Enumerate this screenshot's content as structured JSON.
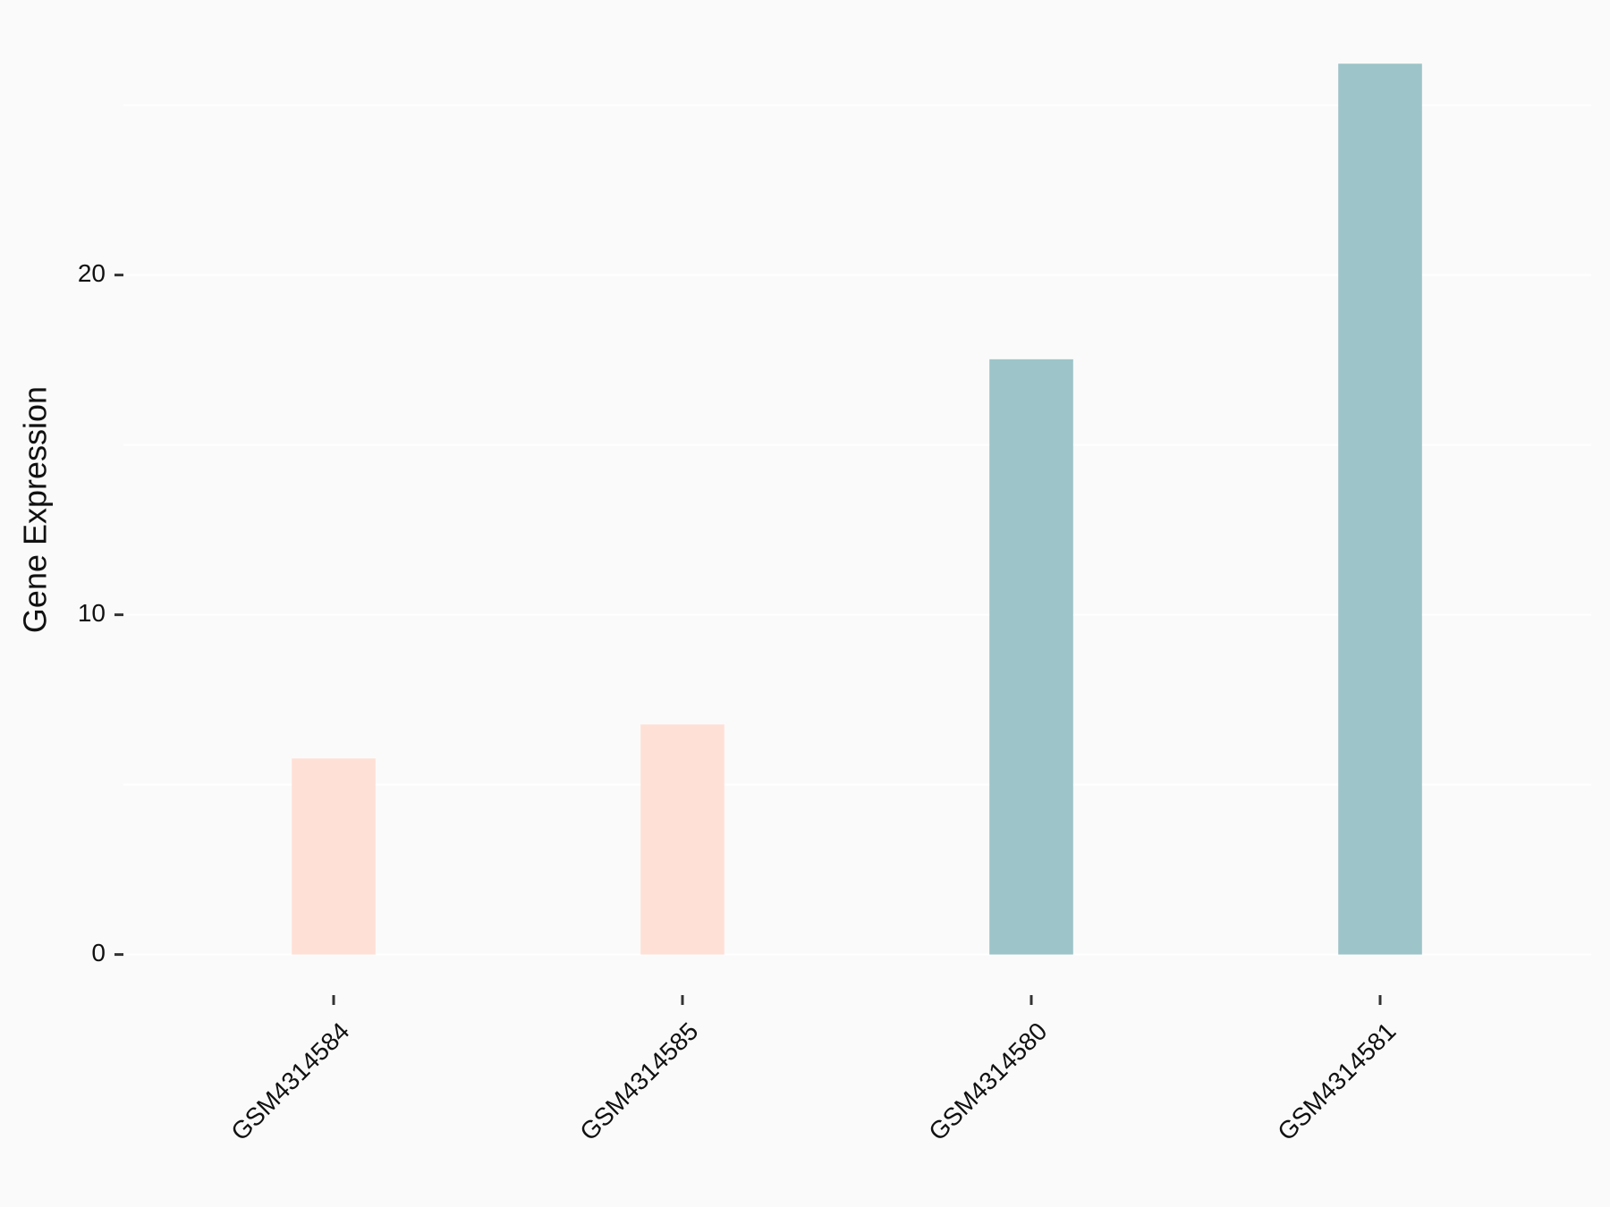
{
  "chart_data": {
    "type": "bar",
    "y_label": "Gene Expression",
    "categories": [
      "GSM4314584",
      "GSM4314585",
      "GSM4314580",
      "GSM4314581"
    ],
    "values": [
      5.77,
      6.77,
      17.52,
      26.22
    ],
    "colors": [
      "#ffe0d6",
      "#ffe0d6",
      "#9dc4c8",
      "#9dc4c8"
    ],
    "ylim": [
      -1.3,
      27.5
    ],
    "yticks": [
      0,
      10,
      20
    ],
    "minor_grid": [
      5,
      15,
      25
    ],
    "grid": true
  }
}
